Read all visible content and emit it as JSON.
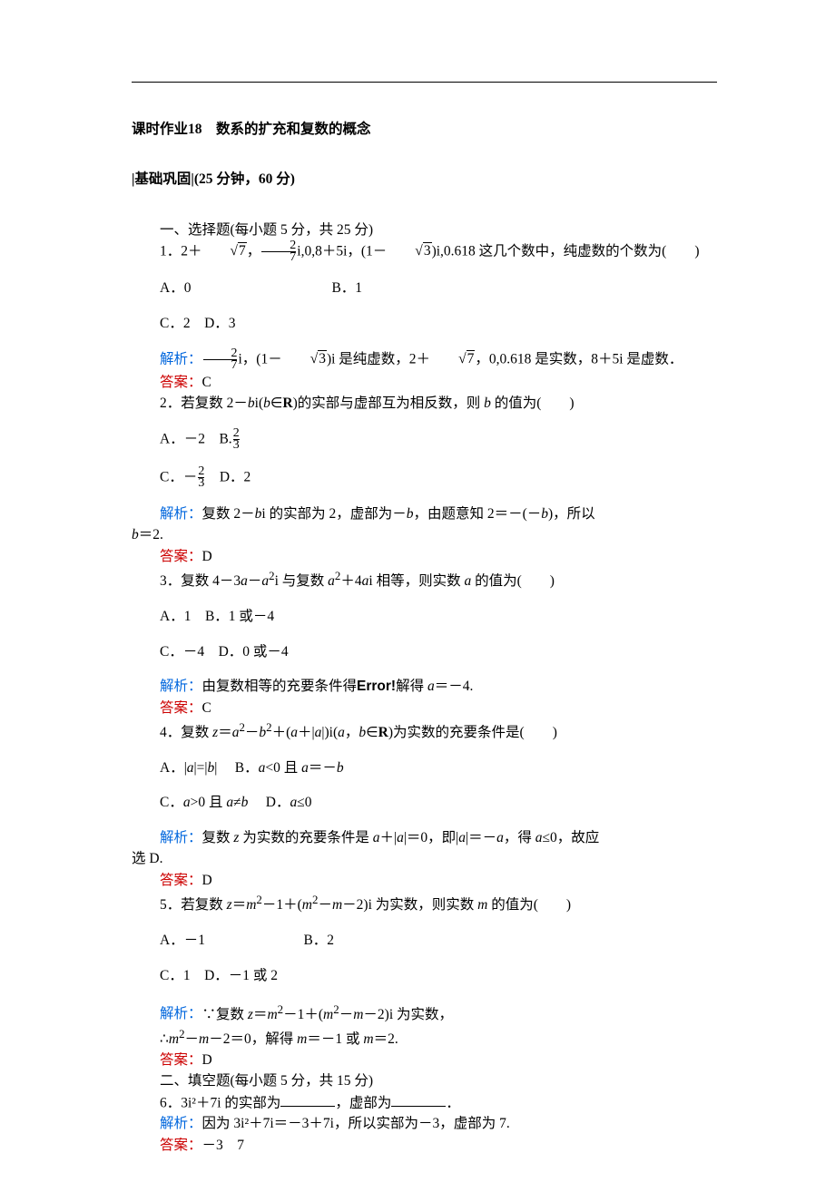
{
  "colors": {
    "blue": "#0066dd",
    "red": "#cc0000",
    "text": "#000000",
    "bg": "#ffffff"
  },
  "title": "课时作业18　数系的扩充和复数的概念",
  "subtitle": "|基础巩固|(25 分钟，60 分)",
  "section1": "一、选择题(每小题 5 分，共 25 分)",
  "q1": {
    "stem_a": "1．2＋",
    "r7": "7",
    "stem_b": "，",
    "frac_n": "2",
    "frac_d": "7",
    "stem_c": "i,0,8＋5i，(1－",
    "r3": "3",
    "stem_d": ")i,0.618 这几个数中，纯虚数的个数为(　　)",
    "A": "A．0",
    "B": "B．1",
    "C": "C．2",
    "D": "D．3",
    "jiexi_a": "解析：",
    "jiexi_b": "i，(1－",
    "jiexi_c": ")i 是纯虚数，2＋",
    "jiexi_d": "，0,0.618 是实数，8＋5i 是虚数．",
    "ans": "答案：",
    "ans_v": "C"
  },
  "q2": {
    "stem": "2．若复数 2－bi(b∈R)的实部与虚部互为相反数，则 b 的值为(　　)",
    "A": "A．－2",
    "Bpre": "B.",
    "Bn": "2",
    "Bd": "3",
    "Cpre": "C．－",
    "Cn": "2",
    "Cd": "3",
    "D": "D．2",
    "jiexi_lbl": "解析：",
    "jiexi": "复数 2－bi 的实部为 2，虚部为－b，由题意知 2＝－(－b)，所以",
    "jiexi2": "b＝2.",
    "ans": "答案：",
    "ans_v": "D"
  },
  "q3": {
    "stem": "3．复数 4－3a－a²i 与复数 a²＋4ai 相等，则实数 a 的值为(　　)",
    "A": "A．1",
    "B": "B．1 或－4",
    "C": "C．－4",
    "D": "D．0 或－4",
    "jiexi_lbl": "解析：",
    "jiexi_a": "由复数相等的充要条件得",
    "err": "Error!",
    "jiexi_b": "解得 a＝－4.",
    "ans": "答案：",
    "ans_v": "C"
  },
  "q4": {
    "stem": "4．复数 z＝a²－b²＋(a＋|a|)i(a，b∈R)为实数的充要条件是(　　)",
    "A": "A．|a|=|b|",
    "B": "B．a<0 且 a＝－b",
    "C": "C．a>0 且 a≠b",
    "D": "D．a≤0",
    "jiexi_lbl": "解析：",
    "jiexi": "复数 z 为实数的充要条件是 a＋|a|＝0，即|a|＝－a，得 a≤0，故应",
    "jiexi2": "选 D.",
    "ans": "答案：",
    "ans_v": "D"
  },
  "q5": {
    "stem": "5．若复数 z＝m²－1＋(m²－m－2)i 为实数，则实数 m 的值为(　　)",
    "A": "A．－1",
    "B": "B．2",
    "C": "C．1",
    "D": "D．－1 或 2",
    "jiexi_lbl": "解析：",
    "jiexi1": "∵复数 z＝m²－1＋(m²－m－2)i 为实数，",
    "jiexi2": "∴m²－m－2＝0，解得 m＝－1 或 m＝2.",
    "ans": "答案：",
    "ans_v": "D"
  },
  "section2": "二、填空题(每小题 5 分，共 15 分)",
  "q6": {
    "stem_a": "6．3i²＋7i 的实部为",
    "stem_b": "，虚部为",
    "stem_c": "．",
    "jiexi_lbl": "解析：",
    "jiexi": "因为 3i²＋7i＝－3＋7i，所以实部为－3，虚部为 7.",
    "ans": "答案：",
    "ans_v": "－3　7"
  }
}
